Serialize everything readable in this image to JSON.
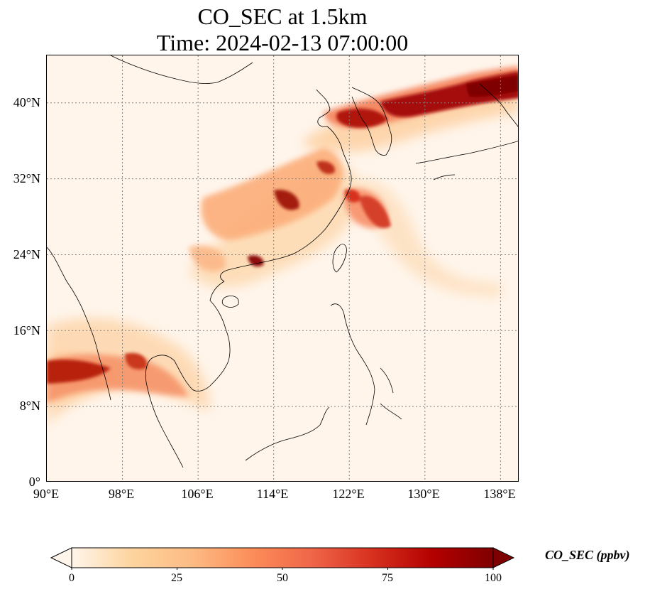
{
  "title": {
    "line1": "CO_SEC at 1.5km",
    "line2": "Time: 2024-02-13 07:00:00"
  },
  "map": {
    "projection": "PlateCarree",
    "lon_range": [
      90,
      140
    ],
    "lat_range": [
      0,
      45
    ],
    "gridlines": "dotted grey",
    "lat_ticks": [
      "0°",
      "8°N",
      "16°N",
      "24°N",
      "32°N",
      "40°N"
    ],
    "lon_ticks": [
      "90°E",
      "98°E",
      "106°E",
      "114°E",
      "122°E",
      "130°E",
      "138°E"
    ],
    "coastlines_color": "#000000",
    "colormap": "OrRd",
    "plumes": [
      "North China Plain / Yellow Sea / Korea / Sea of Japan band (high)",
      "East China / Yangtze corridor (moderate-high)",
      "Taiwan Strait to east of Taiwan band",
      "South China coast / Pearl River Delta hotspot",
      "Myanmar / Thailand / Bay of Bengal band (high)"
    ]
  },
  "colorbar": {
    "label": "CO_SEC (ppbv)",
    "min": 0,
    "max": 100,
    "extend": "both",
    "ticks": [
      "0",
      "25",
      "50",
      "75",
      "100"
    ],
    "colors": [
      "#fff5eb",
      "#fdd49e",
      "#fdbb84",
      "#fc8d59",
      "#ef6548",
      "#d7301f",
      "#b30000",
      "#7f0000"
    ]
  }
}
